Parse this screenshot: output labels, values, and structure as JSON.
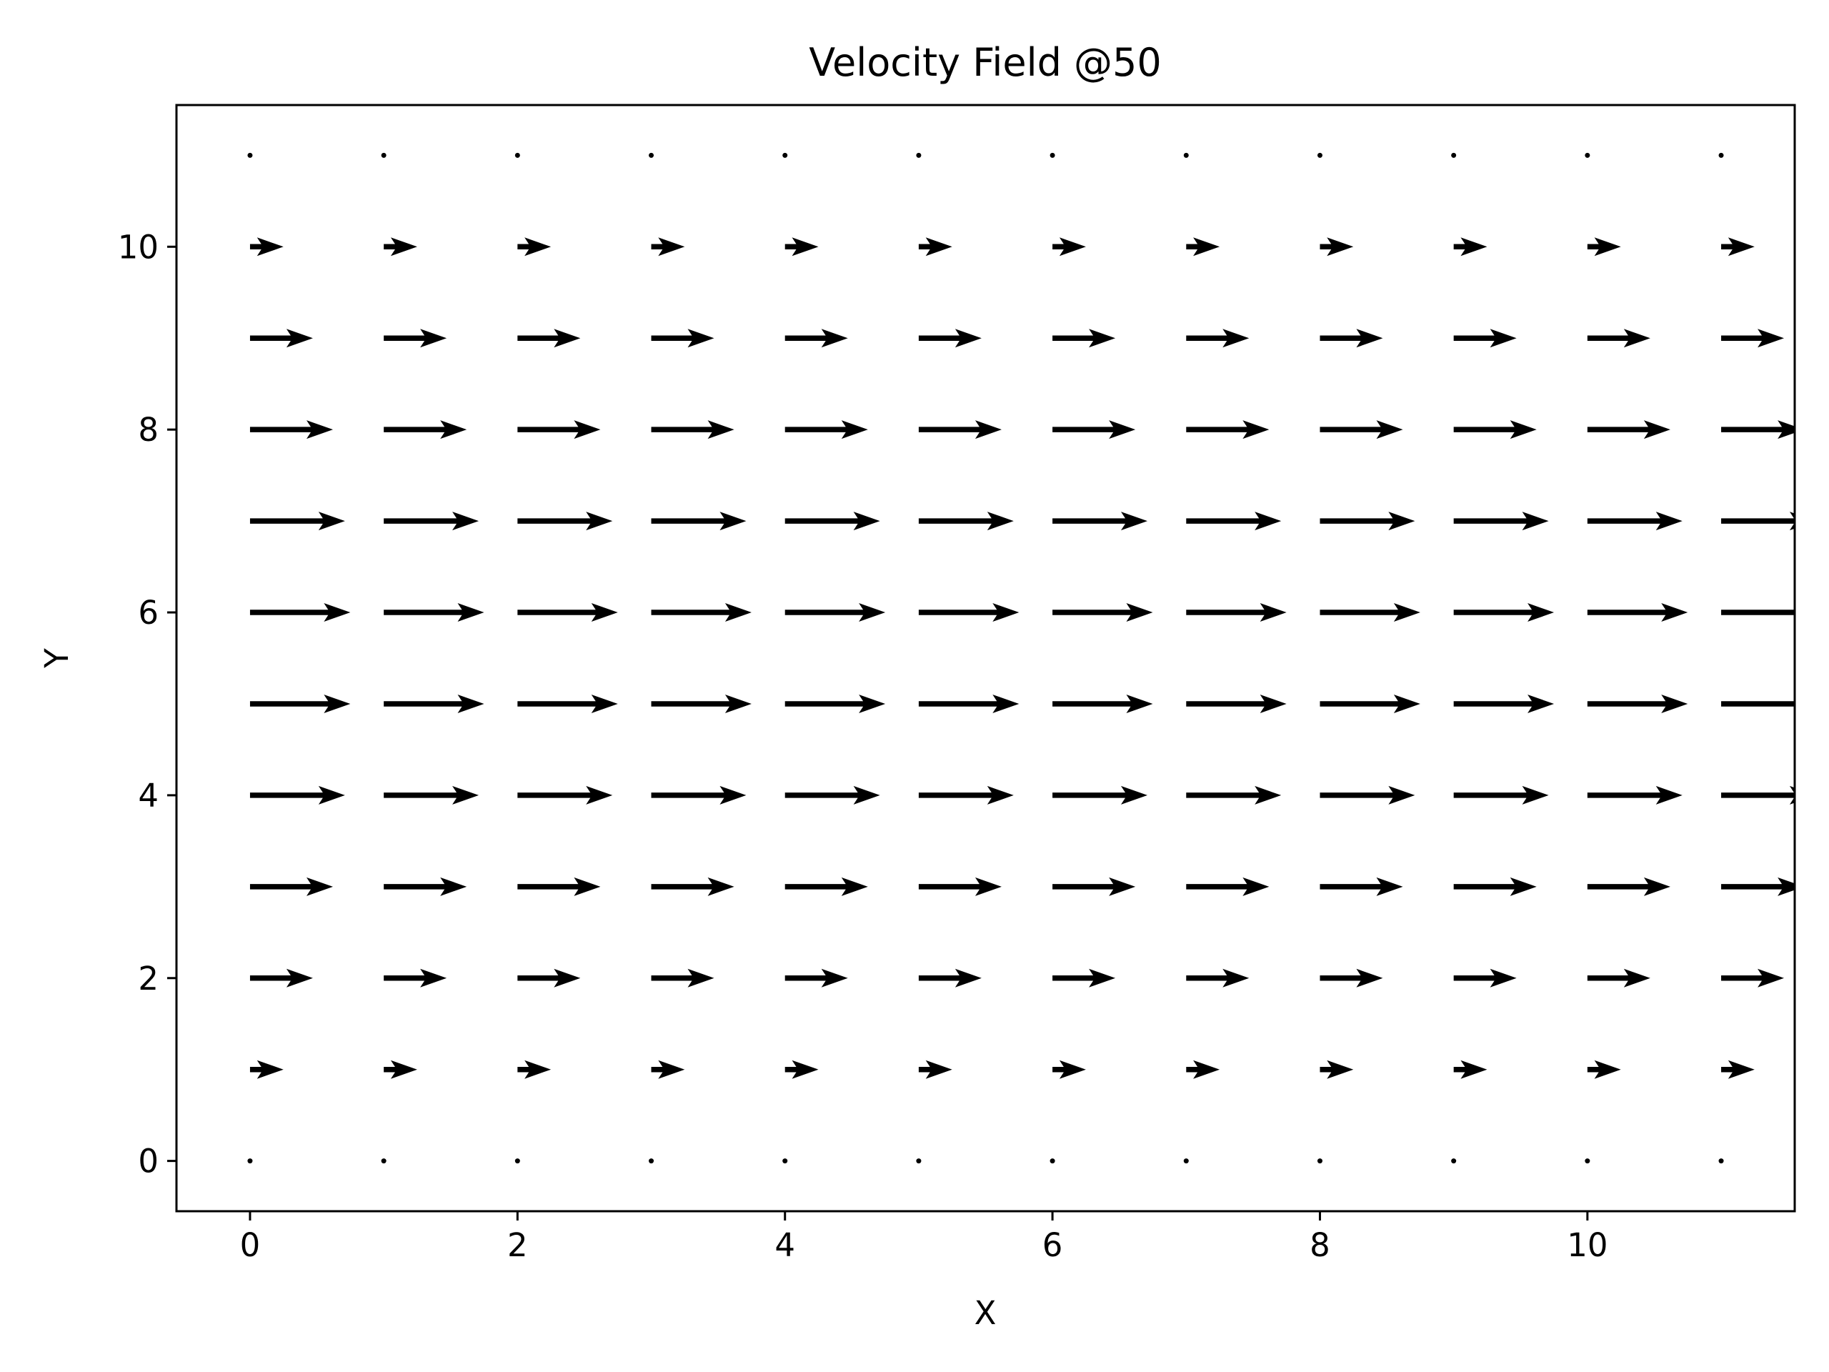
{
  "chart_data": {
    "type": "quiver",
    "title": "Velocity Field @50",
    "xlabel": "X",
    "ylabel": "Y",
    "xlim": [
      -0.55,
      11.55
    ],
    "ylim": [
      -0.55,
      11.55
    ],
    "x_ticks": [
      0,
      2,
      4,
      6,
      8,
      10
    ],
    "y_ticks": [
      0,
      2,
      4,
      6,
      8,
      10
    ],
    "x_tick_labels": [
      "0",
      "2",
      "4",
      "6",
      "8",
      "10"
    ],
    "y_tick_labels": [
      "0",
      "2",
      "4",
      "6",
      "8",
      "10"
    ],
    "grid": false,
    "legend": "none",
    "arrow_color": "#000000",
    "arrow_direction": "+x",
    "grid_x": [
      0,
      1,
      2,
      3,
      4,
      5,
      6,
      7,
      8,
      9,
      10,
      11
    ],
    "rows": [
      {
        "y": 0,
        "u": 0.0
      },
      {
        "y": 1,
        "u": 0.25
      },
      {
        "y": 2,
        "u": 0.47
      },
      {
        "y": 3,
        "u": 0.62
      },
      {
        "y": 4,
        "u": 0.71
      },
      {
        "y": 5,
        "u": 0.75
      },
      {
        "y": 6,
        "u": 0.75
      },
      {
        "y": 7,
        "u": 0.71
      },
      {
        "y": 8,
        "u": 0.62
      },
      {
        "y": 9,
        "u": 0.47
      },
      {
        "y": 10,
        "u": 0.25
      },
      {
        "y": 11,
        "u": 0.0
      }
    ]
  }
}
